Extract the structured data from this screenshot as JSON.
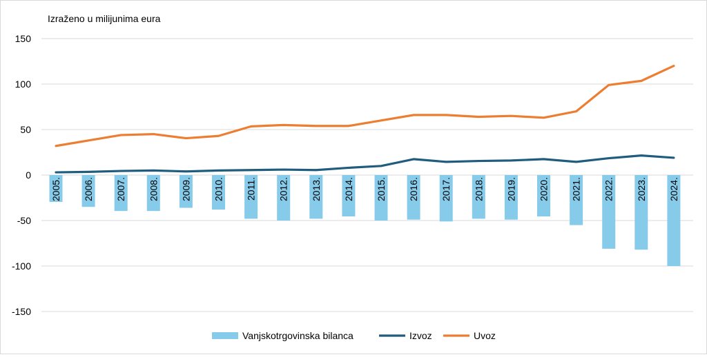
{
  "chart_data": {
    "type": "bar+line",
    "subtitle": "Izraženo u milijunima eura",
    "categories": [
      "2005.",
      "2006.",
      "2007.",
      "2008.",
      "2009.",
      "2010.",
      "2011.",
      "2012.",
      "2013.",
      "2014.",
      "2015.",
      "2016.",
      "2017.",
      "2018.",
      "2019.",
      "2020.",
      "2021.",
      "2022.",
      "2023.",
      "2024."
    ],
    "ylim": [
      -150,
      150
    ],
    "yticks": [
      150,
      100,
      50,
      0,
      -50,
      -100,
      -150
    ],
    "grid": true,
    "legend_position": "bottom",
    "series": [
      {
        "name": "Vanjskotrgovinska bilanca",
        "type": "bar",
        "color": "#87CBEB",
        "values": [
          -29.5,
          -35,
          -39.5,
          -39.5,
          -36,
          -38,
          -48,
          -50,
          -48,
          -45.5,
          -50,
          -49,
          -51,
          -48,
          -49,
          -45.5,
          -55,
          -81,
          -82,
          -100
        ]
      },
      {
        "name": "Izvoz",
        "type": "line",
        "color": "#1F5C7D",
        "values": [
          3,
          3.5,
          4.5,
          5,
          4,
          5,
          5.5,
          6,
          5.5,
          8,
          10,
          17.5,
          14.5,
          15.5,
          16,
          17.5,
          14.5,
          18.5,
          21.5,
          19
        ]
      },
      {
        "name": "Uvoz",
        "type": "line",
        "color": "#ED7D31",
        "values": [
          32,
          38,
          44,
          45,
          40.5,
          43,
          53.5,
          55,
          54,
          54,
          60,
          66,
          66,
          64,
          65,
          63,
          70,
          99,
          103.5,
          120
        ]
      }
    ]
  }
}
